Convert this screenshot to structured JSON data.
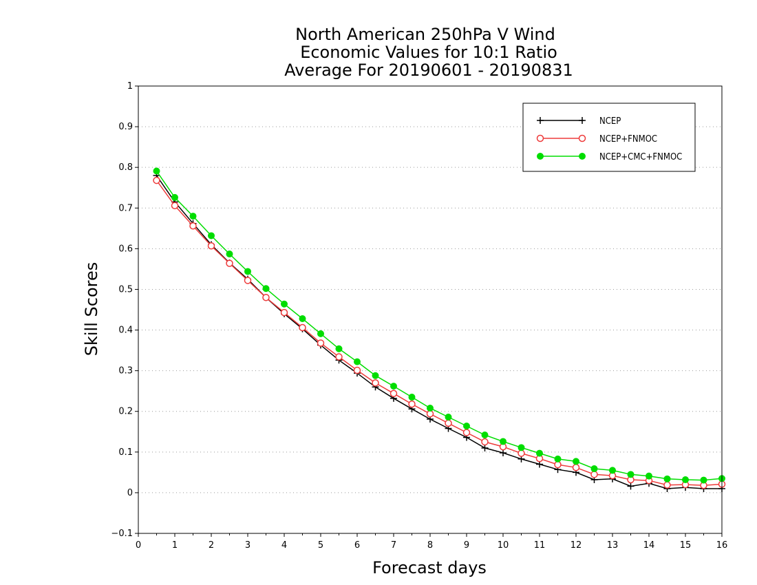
{
  "chart_data": {
    "type": "line",
    "title": [
      "North American 250hPa V Wind",
      "Economic Values for 10:1 Ratio",
      "Average For 20190601 - 20190831"
    ],
    "xlabel": "Forecast days",
    "ylabel": "Skill Scores",
    "xlim": [
      0,
      16
    ],
    "ylim": [
      -0.1,
      1
    ],
    "xticks": [
      "0",
      "1",
      "2",
      "3",
      "4",
      "5",
      "6",
      "7",
      "8",
      "9",
      "10",
      "11",
      "12",
      "13",
      "14",
      "15",
      "16"
    ],
    "yticks": [
      "-0.1",
      "0",
      "0.1",
      "0.2",
      "0.3",
      "0.4",
      "0.5",
      "0.6",
      "0.7",
      "0.8",
      "0.9",
      "1"
    ],
    "grid": true,
    "legend_position": "top-right",
    "x": [
      0.5,
      1,
      1.5,
      2,
      2.5,
      3,
      3.5,
      4,
      4.5,
      5,
      5.5,
      6,
      6.5,
      7,
      7.5,
      8,
      8.5,
      9,
      9.5,
      10,
      10.5,
      11,
      11.5,
      12,
      12.5,
      13,
      13.5,
      14,
      14.5,
      15,
      15.5,
      16
    ],
    "series": [
      {
        "name": "NCEP",
        "color": "#000000",
        "marker": "plus",
        "values": [
          0.78,
          0.715,
          0.662,
          0.61,
          0.565,
          0.525,
          0.48,
          0.44,
          0.403,
          0.363,
          0.326,
          0.294,
          0.26,
          0.232,
          0.206,
          0.181,
          0.158,
          0.136,
          0.11,
          0.098,
          0.083,
          0.07,
          0.057,
          0.05,
          0.032,
          0.034,
          0.016,
          0.023,
          0.01,
          0.013,
          0.01,
          0.01
        ]
      },
      {
        "name": "NCEP+FNMOC",
        "color": "#ee3a3a",
        "marker": "open-circle",
        "values": [
          0.768,
          0.706,
          0.656,
          0.607,
          0.564,
          0.522,
          0.48,
          0.443,
          0.406,
          0.368,
          0.334,
          0.301,
          0.27,
          0.244,
          0.218,
          0.194,
          0.171,
          0.148,
          0.125,
          0.113,
          0.097,
          0.084,
          0.069,
          0.062,
          0.045,
          0.042,
          0.032,
          0.03,
          0.019,
          0.02,
          0.018,
          0.021
        ]
      },
      {
        "name": "NCEP+CMC+FNMOC",
        "color": "#00dd00",
        "marker": "filled-circle",
        "values": [
          0.791,
          0.726,
          0.68,
          0.632,
          0.587,
          0.544,
          0.502,
          0.464,
          0.428,
          0.391,
          0.354,
          0.322,
          0.288,
          0.262,
          0.235,
          0.208,
          0.186,
          0.164,
          0.142,
          0.126,
          0.111,
          0.097,
          0.083,
          0.077,
          0.059,
          0.055,
          0.045,
          0.041,
          0.034,
          0.032,
          0.031,
          0.035
        ]
      }
    ]
  }
}
